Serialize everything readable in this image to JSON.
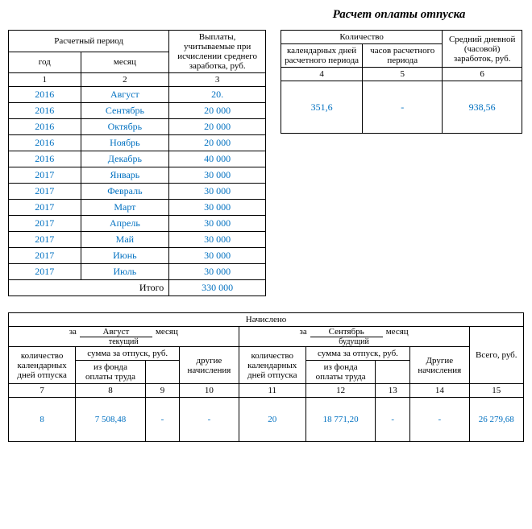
{
  "title": "Расчет оплаты отпуска",
  "colors": {
    "data": "#0070c0",
    "border": "#000000",
    "bg": "#ffffff"
  },
  "table1": {
    "headers": {
      "period": "Расчетный период",
      "year": "год",
      "month": "месяц",
      "payments": "Выплаты, учитываемые при исчислении среднего заработка, руб."
    },
    "colnums": [
      "1",
      "2",
      "3"
    ],
    "rows": [
      {
        "year": "2016",
        "month": "Август",
        "val": "20."
      },
      {
        "year": "2016",
        "month": "Сентябрь",
        "val": "20 000"
      },
      {
        "year": "2016",
        "month": "Октябрь",
        "val": "20 000"
      },
      {
        "year": "2016",
        "month": "Ноябрь",
        "val": "20 000"
      },
      {
        "year": "2016",
        "month": "Декабрь",
        "val": "40 000"
      },
      {
        "year": "2017",
        "month": "Январь",
        "val": "30 000"
      },
      {
        "year": "2017",
        "month": "Февраль",
        "val": "30 000"
      },
      {
        "year": "2017",
        "month": "Март",
        "val": "30 000"
      },
      {
        "year": "2017",
        "month": "Апрель",
        "val": "30 000"
      },
      {
        "year": "2017",
        "month": "Май",
        "val": "30 000"
      },
      {
        "year": "2017",
        "month": "Июнь",
        "val": "30 000"
      },
      {
        "year": "2017",
        "month": "Июль",
        "val": "30 000"
      }
    ],
    "itogo_label": "Итого",
    "itogo_val": "330 000"
  },
  "table2": {
    "headers": {
      "qty": "Количество",
      "caldays": "календарных дней расчетного периода",
      "hours": "часов расчетного периода",
      "avg": "Средний дневной (часовой) заработок, руб."
    },
    "colnums": [
      "4",
      "5",
      "6"
    ],
    "vals": [
      "351,6",
      "-",
      "938,56"
    ]
  },
  "table3": {
    "title": "Начислено",
    "za": "за",
    "mesyats": "месяц",
    "month1": "Август",
    "month1_sub": "текущий",
    "month2": "Сентябрь",
    "month2_sub": "будущий",
    "headers": {
      "days": "количество календарных дней отпуска",
      "sum": "сумма за отпуск, руб.",
      "fund": "из фонда оплаты труда",
      "other": "другие начисления",
      "other2": "Другие начисления",
      "total": "Всего, руб."
    },
    "colnums": [
      "7",
      "8",
      "9",
      "10",
      "11",
      "12",
      "13",
      "14",
      "15"
    ],
    "vals": [
      "8",
      "7 508,48",
      "-",
      "-",
      "20",
      "18 771,20",
      "-",
      "-",
      "26 279,68"
    ]
  }
}
